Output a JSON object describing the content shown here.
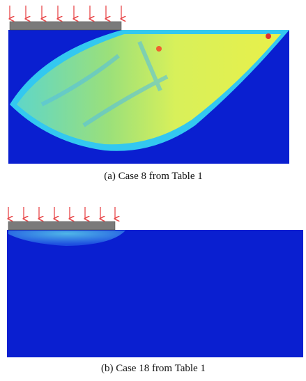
{
  "figure": {
    "captions": [
      "(a) Case 8 from Table 1",
      "(b) Case 18 from Table 1"
    ]
  }
}
